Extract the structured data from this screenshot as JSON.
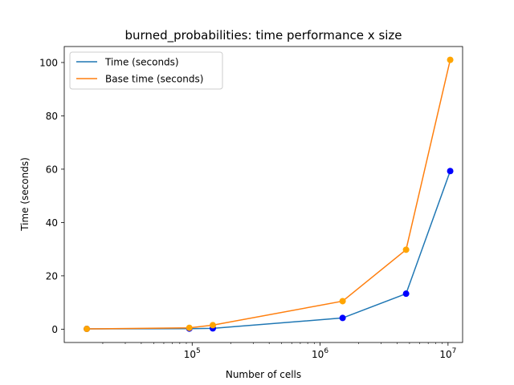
{
  "chart_data": {
    "type": "line",
    "title": "burned_probabilities: time performance x size",
    "xlabel": "Number of cells",
    "ylabel": "Time (seconds)",
    "x_scale": "log",
    "xlim": [
      10000,
      13000000
    ],
    "ylim": [
      -5,
      106
    ],
    "x_ticks": [
      {
        "value": 100000,
        "base": "10",
        "exp": "5"
      },
      {
        "value": 1000000,
        "base": "10",
        "exp": "6"
      },
      {
        "value": 10000000,
        "base": "10",
        "exp": "7"
      }
    ],
    "y_ticks": [
      0,
      20,
      40,
      60,
      80,
      100
    ],
    "grid": false,
    "legend_position": "upper-left",
    "series": [
      {
        "name": "Time (seconds)",
        "line_color": "#1f77b4",
        "marker_color": "#0000ff",
        "x": [
          15000,
          95000,
          145000,
          1500000,
          4700000,
          10400000
        ],
        "y": [
          0.1,
          0.2,
          0.3,
          4.2,
          13.3,
          59.3
        ]
      },
      {
        "name": "Base time (seconds)",
        "line_color": "#ff7f0e",
        "marker_color": "#ffa500",
        "x": [
          15000,
          95000,
          145000,
          1500000,
          4700000,
          10400000
        ],
        "y": [
          0.1,
          0.5,
          1.5,
          10.5,
          29.8,
          101.0
        ]
      }
    ]
  }
}
